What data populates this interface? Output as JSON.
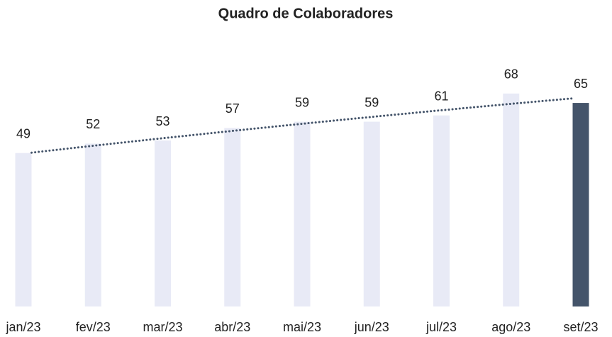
{
  "chart_data": {
    "type": "bar",
    "title": "Quadro de Colaboradores",
    "categories": [
      "jan/23",
      "fev/23",
      "mar/23",
      "abr/23",
      "mai/23",
      "jun/23",
      "jul/23",
      "ago/23",
      "set/23"
    ],
    "values": [
      49,
      52,
      53,
      57,
      59,
      59,
      61,
      68,
      65
    ],
    "colors": [
      "#e8eaf6",
      "#e8eaf6",
      "#e8eaf6",
      "#e8eaf6",
      "#e8eaf6",
      "#e8eaf6",
      "#e8eaf6",
      "#e8eaf6",
      "#44546a"
    ],
    "ylim": [
      0,
      70
    ],
    "trendline": "polynomial",
    "trendline_color": "#44546a"
  }
}
